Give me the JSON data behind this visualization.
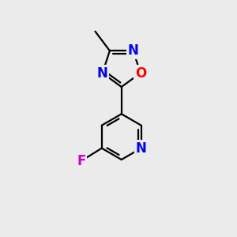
{
  "background_color": "#ebebeb",
  "bond_color": "#000000",
  "bond_width": 1.6,
  "atom_colors": {
    "N": "#0000ff",
    "O": "#ff0000",
    "F": "#cc00cc",
    "C": "#000000"
  },
  "font_size_atom": 12,
  "xlim": [
    -2.2,
    2.2
  ],
  "ylim": [
    -3.2,
    3.2
  ]
}
